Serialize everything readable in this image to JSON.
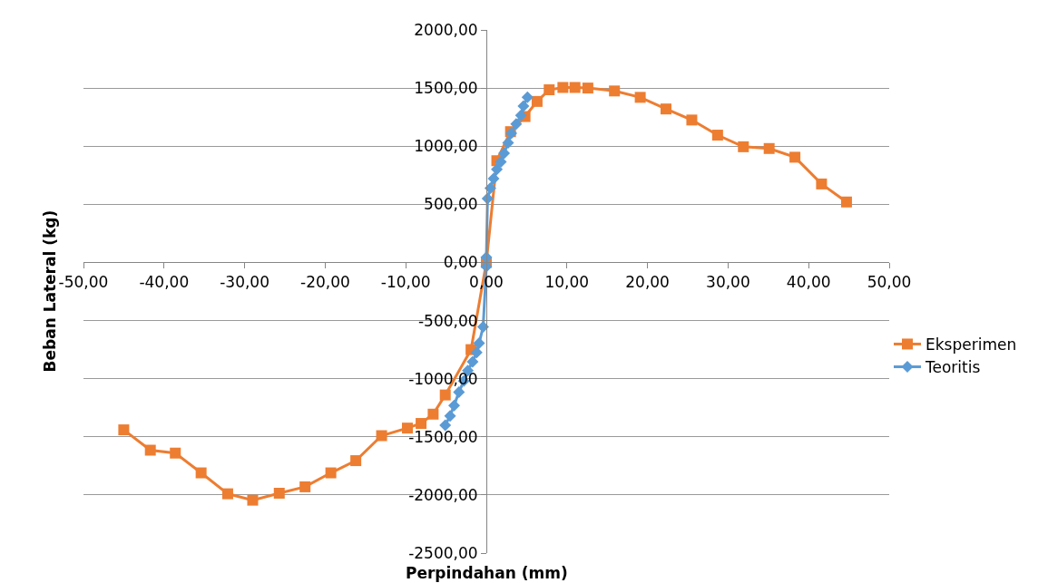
{
  "chart_data": {
    "type": "line",
    "xlabel": "Perpindahan (mm)",
    "ylabel": "Beban Lateral (kg)",
    "xlim": [
      -50,
      50
    ],
    "ylim": [
      -2500,
      2000
    ],
    "xticks": [
      {
        "value": -50,
        "label": "-50,00"
      },
      {
        "value": -40,
        "label": "-40,00"
      },
      {
        "value": -30,
        "label": "-30,00"
      },
      {
        "value": -20,
        "label": "-20,00"
      },
      {
        "value": -10,
        "label": "-10,00"
      },
      {
        "value": 0,
        "label": "0,00"
      },
      {
        "value": 10,
        "label": "10,00"
      },
      {
        "value": 20,
        "label": "20,00"
      },
      {
        "value": 30,
        "label": "30,00"
      },
      {
        "value": 40,
        "label": "40,00"
      },
      {
        "value": 50,
        "label": "50,00"
      }
    ],
    "yticks": [
      {
        "value": -2500,
        "label": "-2500,00"
      },
      {
        "value": -2000,
        "label": "-2000,00"
      },
      {
        "value": -1500,
        "label": "-1500,00"
      },
      {
        "value": -1000,
        "label": "-1000,00"
      },
      {
        "value": -500,
        "label": "-500,00"
      },
      {
        "value": 0,
        "label": "0,00"
      },
      {
        "value": 500,
        "label": "500,00"
      },
      {
        "value": 1000,
        "label": "1000,00"
      },
      {
        "value": 1500,
        "label": "1500,00"
      },
      {
        "value": 2000,
        "label": "2000,00"
      }
    ],
    "grid": "y",
    "legend": "right",
    "series": [
      {
        "name": "Eksperimen",
        "color": "#ed7d31",
        "marker": "square",
        "x": [
          -45.0,
          -41.7,
          -38.6,
          -35.4,
          -32.1,
          -29.0,
          -25.7,
          -22.5,
          -19.3,
          -16.2,
          -13.0,
          -9.8,
          -8.1,
          -6.6,
          -5.1,
          -1.9,
          0,
          1.3,
          3.0,
          4.8,
          6.3,
          7.8,
          9.5,
          11.0,
          12.6,
          15.9,
          19.1,
          22.3,
          25.5,
          28.7,
          31.9,
          35.1,
          38.3,
          41.6,
          44.7
        ],
        "values": [
          -1440,
          -1615,
          -1640,
          -1810,
          -1990,
          -2045,
          -1985,
          -1930,
          -1810,
          -1705,
          -1490,
          -1425,
          -1385,
          -1305,
          -1140,
          -750,
          0,
          875,
          1125,
          1255,
          1385,
          1485,
          1505,
          1505,
          1500,
          1475,
          1420,
          1320,
          1225,
          1095,
          995,
          980,
          905,
          675,
          520
        ]
      },
      {
        "name": "Teoritis",
        "color": "#5b9bd5",
        "marker": "diamond",
        "x": [
          -5.1,
          -4.5,
          -4.0,
          -3.4,
          -2.8,
          -2.3,
          -1.7,
          -1.2,
          -0.9,
          -0.4,
          0,
          0,
          0.15,
          0.5,
          0.9,
          1.3,
          1.8,
          2.2,
          2.7,
          3.1,
          3.7,
          4.3,
          4.6,
          5.1
        ],
        "values": [
          -1400,
          -1320,
          -1230,
          -1115,
          -1020,
          -930,
          -855,
          -775,
          -695,
          -555,
          -35,
          45,
          550,
          640,
          720,
          800,
          865,
          940,
          1030,
          1110,
          1190,
          1265,
          1345,
          1420
        ]
      }
    ]
  }
}
